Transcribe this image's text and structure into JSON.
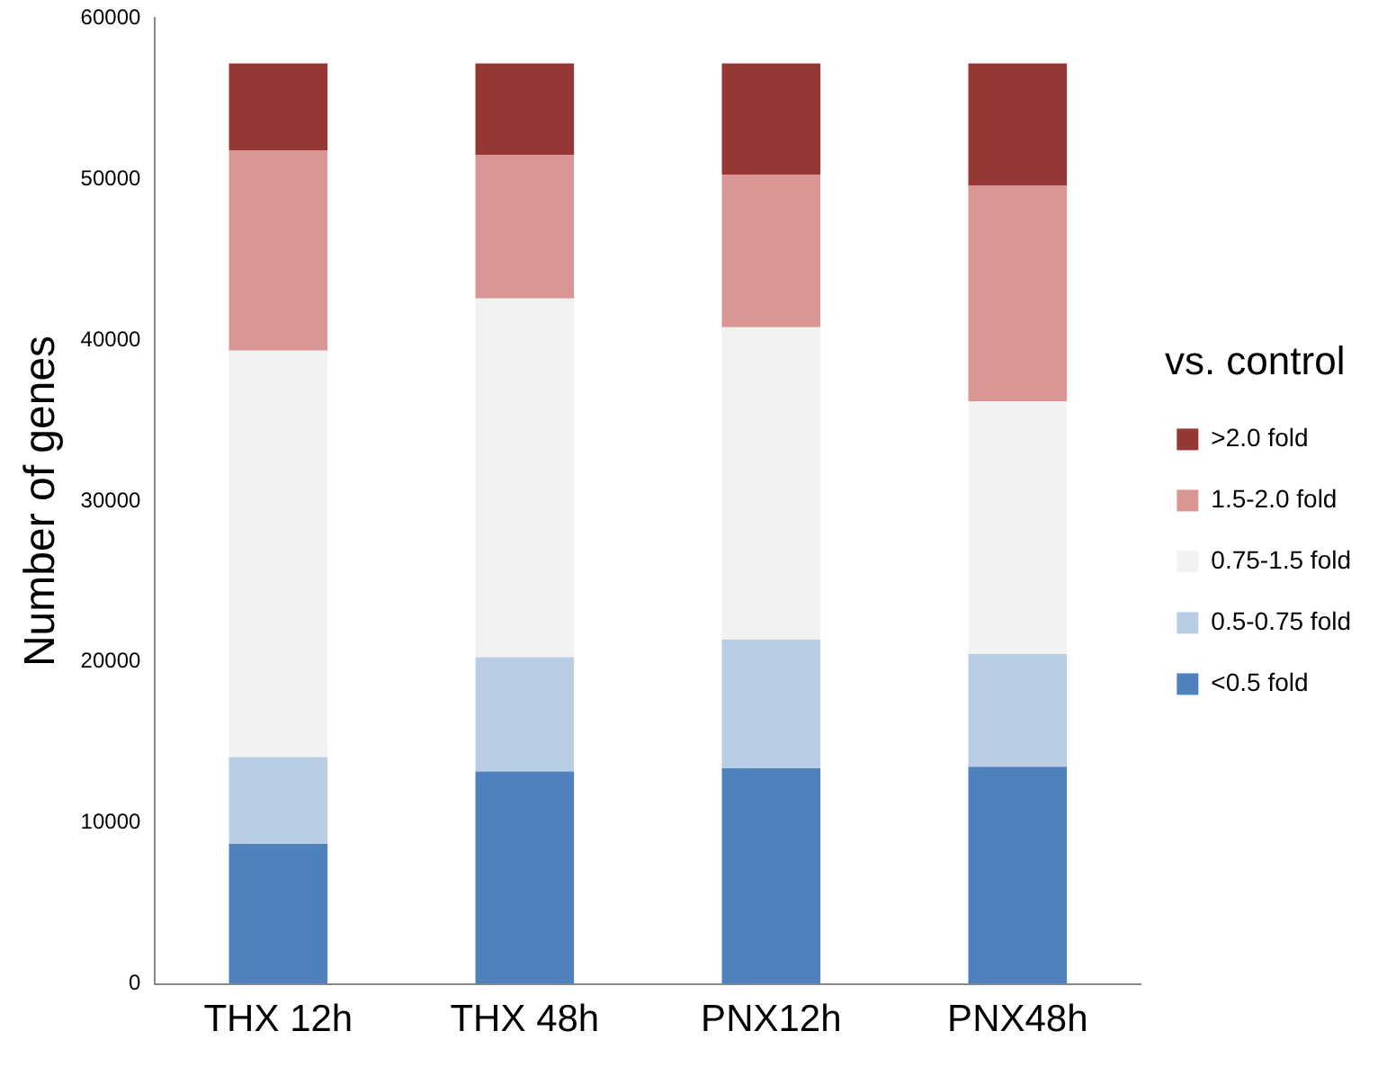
{
  "chart_data": {
    "type": "bar",
    "stacked": true,
    "ylabel": "Number of genes",
    "legend_title": "vs. control",
    "legend": "right",
    "grid": false,
    "categories": [
      "THX 12h",
      "THX 48h",
      "PNX12h",
      "PNX48h"
    ],
    "ylim": [
      0,
      60000
    ],
    "yticks": [
      0,
      10000,
      20000,
      30000,
      40000,
      50000,
      60000
    ],
    "series": [
      {
        "name": "<0.5 fold",
        "color": "#4f81bd",
        "values": [
          8700,
          13200,
          13400,
          13500
        ]
      },
      {
        "name": "0.5-0.75 fold",
        "color": "#b9cde5",
        "values": [
          5400,
          7100,
          8000,
          7000
        ]
      },
      {
        "name": "0.75-1.5 fold",
        "color": "#f2f2f2",
        "values": [
          25250,
          22300,
          19400,
          15700
        ]
      },
      {
        "name": "1.5-2.0 fold",
        "color": "#d99694",
        "values": [
          12450,
          8900,
          9500,
          13400
        ]
      },
      {
        "name": ">2.0 fold",
        "color": "#953735",
        "values": [
          5400,
          5700,
          6900,
          7600
        ]
      }
    ]
  }
}
